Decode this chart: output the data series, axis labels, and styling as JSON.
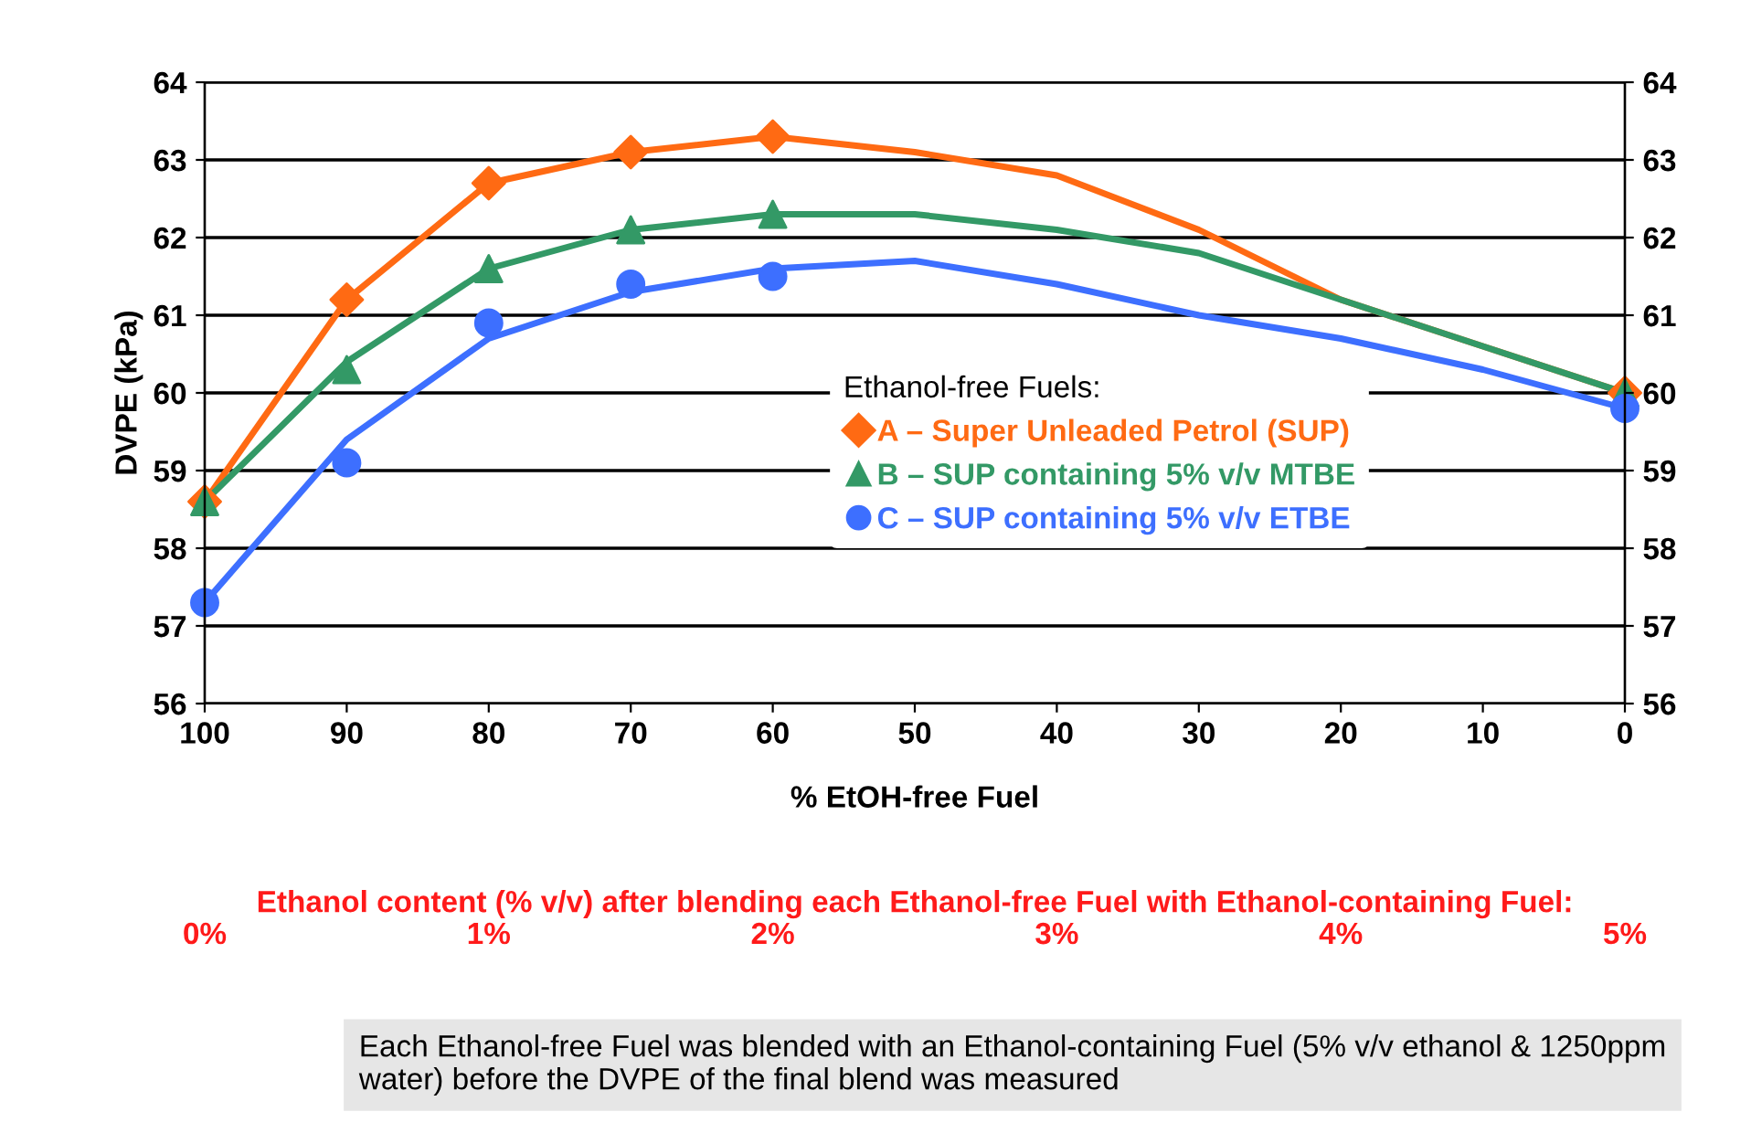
{
  "chart_data": {
    "type": "scatter",
    "xlabel": "% EtOH-free Fuel",
    "ylabel": "DVPE (kPa)",
    "x2label": "Ethanol content (% v/v) after blending each Ethanol-free Fuel with Ethanol-containing Fuel:",
    "legend_title": "Ethanol-free Fuels:",
    "xlim": [
      100,
      0
    ],
    "xticks": [
      100,
      90,
      80,
      70,
      60,
      50,
      40,
      30,
      20,
      10,
      0
    ],
    "x2lim": [
      0,
      5
    ],
    "x2ticks": [
      {
        "value": 0,
        "label": "0%"
      },
      {
        "value": 1,
        "label": "1%"
      },
      {
        "value": 2,
        "label": "2%"
      },
      {
        "value": 3,
        "label": "3%"
      },
      {
        "value": 4,
        "label": "4%"
      },
      {
        "value": 5,
        "label": "5%"
      }
    ],
    "ylim": [
      56,
      64
    ],
    "yticks": [
      56,
      57,
      58,
      59,
      60,
      61,
      62,
      63,
      64
    ],
    "y2lim": [
      56,
      64
    ],
    "y2ticks": [
      56,
      57,
      58,
      59,
      60,
      61,
      62,
      63,
      64
    ],
    "grid": "y",
    "legend": "center",
    "series": [
      {
        "name": "A – Super Unleaded Petrol (SUP)",
        "color": "#ff6a13",
        "marker": "diamond",
        "x": [
          100,
          90,
          80,
          70,
          60,
          0
        ],
        "values": [
          58.6,
          61.2,
          62.7,
          63.1,
          63.3,
          60.0
        ]
      },
      {
        "name": "B – SUP containing 5% v/v MTBE",
        "color": "#339966",
        "marker": "triangle",
        "x": [
          100,
          90,
          80,
          70,
          60,
          0
        ],
        "values": [
          58.6,
          60.3,
          61.6,
          62.1,
          62.3,
          60.0
        ]
      },
      {
        "name": "C – SUP containing 5% v/v ETBE",
        "color": "#3d6fff",
        "marker": "circle",
        "x": [
          100,
          90,
          80,
          70,
          60,
          0
        ],
        "values": [
          57.3,
          59.1,
          60.9,
          61.4,
          61.5,
          59.8
        ]
      },
      {
        "type": "line",
        "color": "#ff6a13",
        "marker": "none",
        "x": [
          100,
          90,
          80,
          70,
          60,
          50,
          40,
          30,
          20,
          10,
          0
        ],
        "values": [
          58.6,
          61.2,
          62.7,
          63.1,
          63.3,
          63.1,
          62.8,
          62.1,
          61.2,
          60.6,
          60.0
        ]
      },
      {
        "type": "line",
        "color": "#339966",
        "marker": "none",
        "x": [
          100,
          90,
          80,
          70,
          60,
          50,
          40,
          30,
          20,
          10,
          0
        ],
        "values": [
          58.6,
          60.4,
          61.6,
          62.1,
          62.3,
          62.3,
          62.1,
          61.8,
          61.2,
          60.6,
          60.0
        ]
      },
      {
        "type": "line",
        "color": "#3d6fff",
        "marker": "none",
        "x": [
          100,
          90,
          80,
          70,
          60,
          50,
          40,
          30,
          20,
          10,
          0
        ],
        "values": [
          57.3,
          59.4,
          60.7,
          61.3,
          61.6,
          61.7,
          61.4,
          61.0,
          60.7,
          60.3,
          59.8
        ]
      }
    ],
    "annotations": [
      "Each Ethanol-free Fuel was blended with an Ethanol-containing Fuel (5% v/v ethanol & 1250ppm water) before the DVPE of the final blend was measured"
    ]
  }
}
